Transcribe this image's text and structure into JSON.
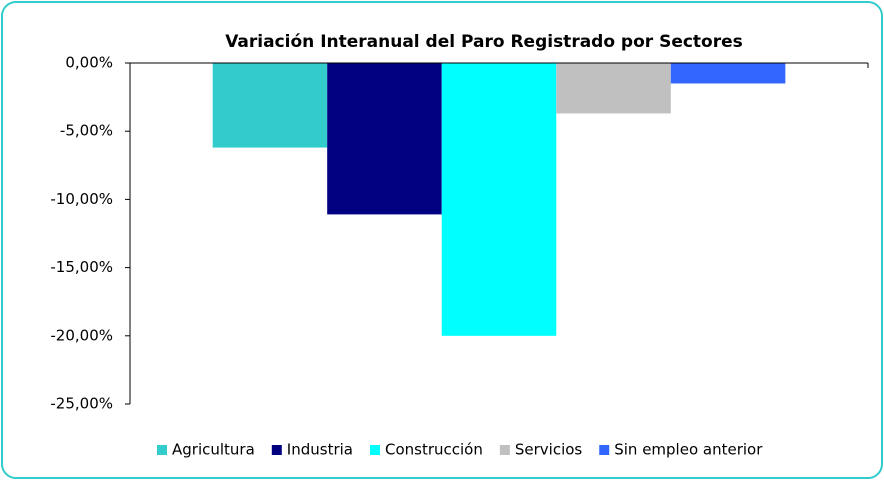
{
  "chart_data": {
    "type": "bar",
    "title": "Variación Interanual del Paro Registrado por Sectores",
    "categories": [
      null
    ],
    "series": [
      {
        "name": "Agricultura",
        "color": "#33cccc",
        "values": [
          -6.2
        ]
      },
      {
        "name": "Industria",
        "color": "#000080",
        "values": [
          -11.1
        ]
      },
      {
        "name": "Construcción",
        "color": "#00ffff",
        "values": [
          -20.0
        ]
      },
      {
        "name": "Servicios",
        "color": "#c0c0c0",
        "values": [
          -3.7
        ]
      },
      {
        "name": "Sin empleo anterior",
        "color": "#3366ff",
        "values": [
          -1.5
        ]
      }
    ],
    "ylim": [
      -25,
      0
    ],
    "yticks": [
      {
        "value": 0,
        "label": "0,00%"
      },
      {
        "value": -5,
        "label": "-5,00%"
      },
      {
        "value": -10,
        "label": "-10,00%"
      },
      {
        "value": -15,
        "label": "-15,00%"
      },
      {
        "value": -20,
        "label": "-20,00%"
      },
      {
        "value": -25,
        "label": "-25,00%"
      }
    ],
    "grid": false,
    "legend": "bottom"
  }
}
